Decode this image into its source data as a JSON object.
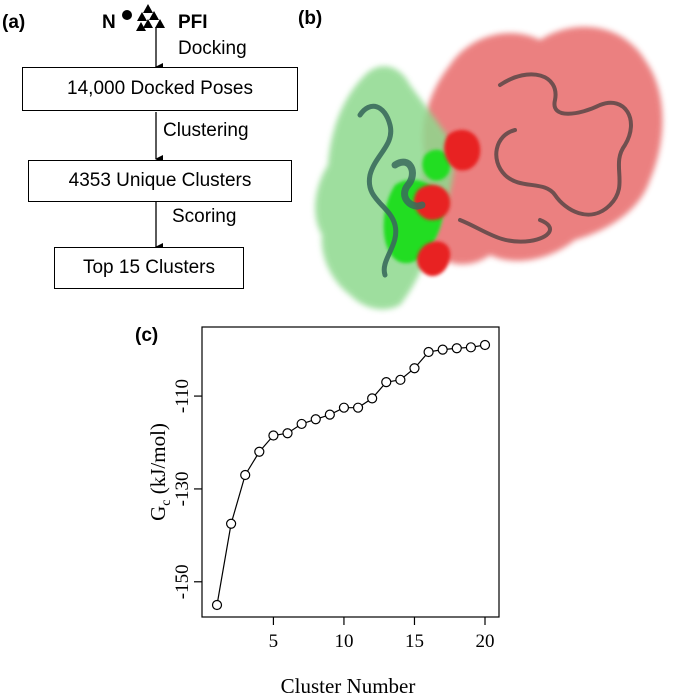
{
  "panels": {
    "a": "(a)",
    "b": "(b)",
    "c": "(c)"
  },
  "flowchart": {
    "inputs": {
      "left": "N",
      "right": "PFI"
    },
    "steps": [
      "Docking",
      "Clustering",
      "Scoring"
    ],
    "boxes": [
      "14,000 Docked Poses",
      "4353 Unique Clusters",
      "Top 15 Clusters"
    ]
  },
  "protein_render": {
    "colors": {
      "left_protein": "#8ed98e",
      "left_interface": "#22dd22",
      "right_protein": "#e86a6a",
      "right_interface": "#e82020"
    }
  },
  "chart_data": {
    "type": "line",
    "title": "",
    "xlabel": "Cluster Number",
    "ylabel": "G_c (kJ/mol)",
    "ylabel_main": "G",
    "ylabel_sub": "c",
    "ylabel_unit": " (kJ/mol)",
    "xlim": [
      1,
      20
    ],
    "ylim": [
      -155,
      -99
    ],
    "xticks": [
      5,
      10,
      15,
      20
    ],
    "yticks": [
      -150,
      -130,
      -110
    ],
    "grid": false,
    "series": [
      {
        "x": [
          1,
          2,
          3,
          4,
          5,
          6,
          7,
          8,
          9,
          10,
          11,
          12,
          13,
          14,
          15,
          16,
          17,
          18,
          19,
          20
        ],
        "y": [
          -155,
          -137.5,
          -127,
          -122,
          -118.5,
          -118,
          -116,
          -115,
          -114,
          -112.5,
          -112.5,
          -110.5,
          -107,
          -106.5,
          -104,
          -100.5,
          -100,
          -99.7,
          -99.5,
          -99
        ]
      }
    ]
  }
}
